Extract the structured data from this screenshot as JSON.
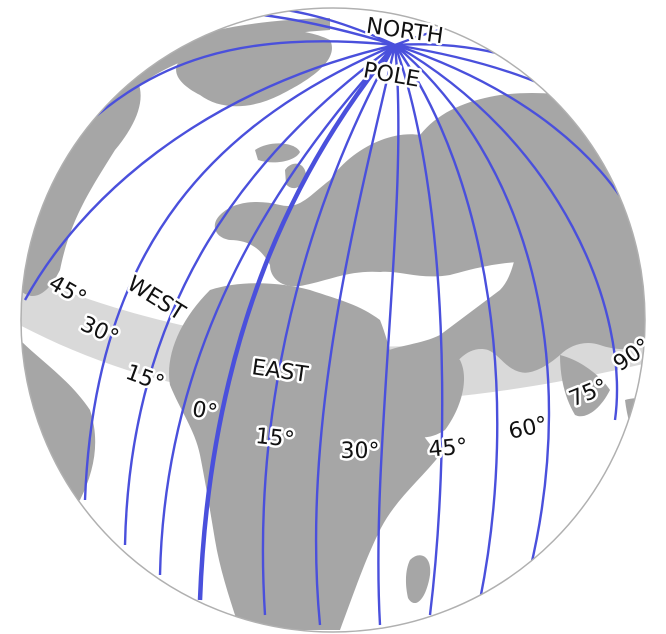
{
  "map": {
    "title_line1": "NORTH",
    "title_line2": "POLE",
    "west_label": "WEST",
    "east_label": "EAST",
    "west_ticks": [
      "45°",
      "30°",
      "15°"
    ],
    "prime_tick": "0°",
    "east_ticks": [
      "15°",
      "30°",
      "45°",
      "60°",
      "75°",
      "90°"
    ],
    "colors": {
      "meridian": "#4a50dc",
      "land": "#a6a6a6",
      "ocean": "#ffffff",
      "equator_band": "#d9d9d9",
      "globe_outline": "#b0b0b0"
    },
    "meridian_spacing_deg": 15,
    "highlighted_meridian": "0°"
  }
}
